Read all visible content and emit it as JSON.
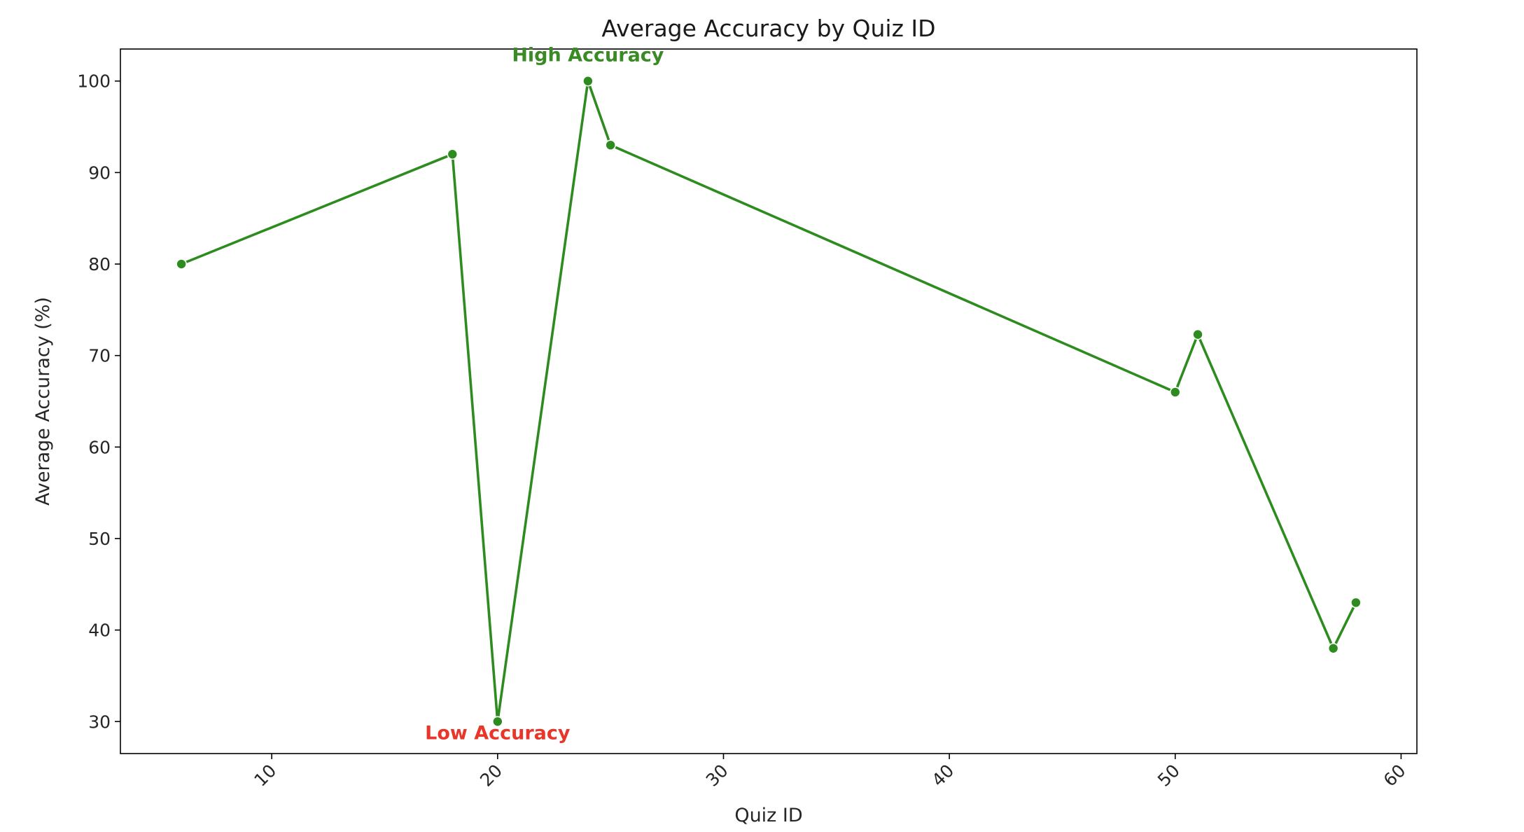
{
  "chart_data": {
    "type": "line",
    "title": "Average Accuracy by Quiz ID",
    "xlabel": "Quiz ID",
    "ylabel": "Average Accuracy (%)",
    "xlim": [
      3.3,
      60.7
    ],
    "ylim": [
      26.5,
      103.5
    ],
    "xticks": [
      10,
      20,
      30,
      40,
      50,
      60
    ],
    "yticks": [
      30,
      40,
      50,
      60,
      70,
      80,
      90,
      100
    ],
    "x_tick_rotation": 45,
    "grid": false,
    "series": [
      {
        "color": "#2e8b1f",
        "marker": "circle",
        "points": [
          {
            "x": 6,
            "y": 80
          },
          {
            "x": 18,
            "y": 92
          },
          {
            "x": 20,
            "y": 30
          },
          {
            "x": 24,
            "y": 100
          },
          {
            "x": 25,
            "y": 93
          },
          {
            "x": 50,
            "y": 66
          },
          {
            "x": 51,
            "y": 72.3
          },
          {
            "x": 57,
            "y": 38
          },
          {
            "x": 58,
            "y": 43
          }
        ]
      }
    ],
    "annotations": [
      {
        "text": "High Accuracy",
        "x": 24,
        "y": 100,
        "position": "above",
        "color": "#3a8a26"
      },
      {
        "text": "Low Accuracy",
        "x": 20,
        "y": 30,
        "position": "below",
        "color": "#e8362a"
      }
    ]
  }
}
